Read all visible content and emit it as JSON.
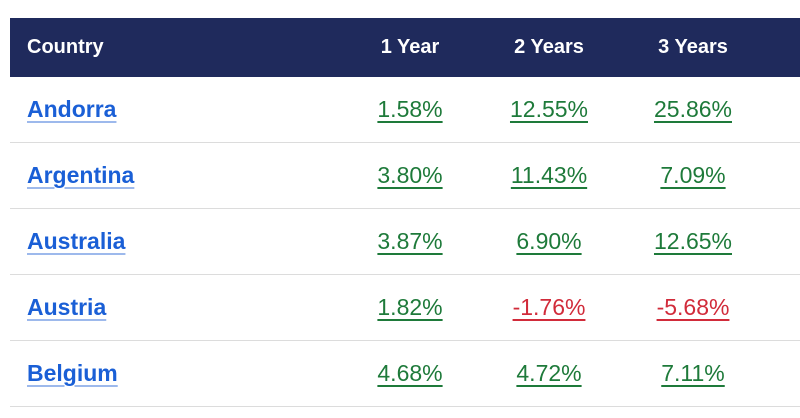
{
  "header": {
    "country": "Country",
    "year1": "1 Year",
    "year2": "2 Years",
    "year3": "3 Years"
  },
  "colors": {
    "header_bg": "#1f2a5c",
    "link": "#1a5fd6",
    "positive": "#1e7a3a",
    "negative": "#d12b3a"
  },
  "rows": [
    {
      "country": "Andorra",
      "y1": "1.58%",
      "y2": "12.55%",
      "y3": "25.86%"
    },
    {
      "country": "Argentina",
      "y1": "3.80%",
      "y2": "11.43%",
      "y3": "7.09%"
    },
    {
      "country": "Australia",
      "y1": "3.87%",
      "y2": "6.90%",
      "y3": "12.65%"
    },
    {
      "country": "Austria",
      "y1": "1.82%",
      "y2": "-1.76%",
      "y3": "-5.68%"
    },
    {
      "country": "Belgium",
      "y1": "4.68%",
      "y2": "4.72%",
      "y3": "7.11%"
    }
  ]
}
